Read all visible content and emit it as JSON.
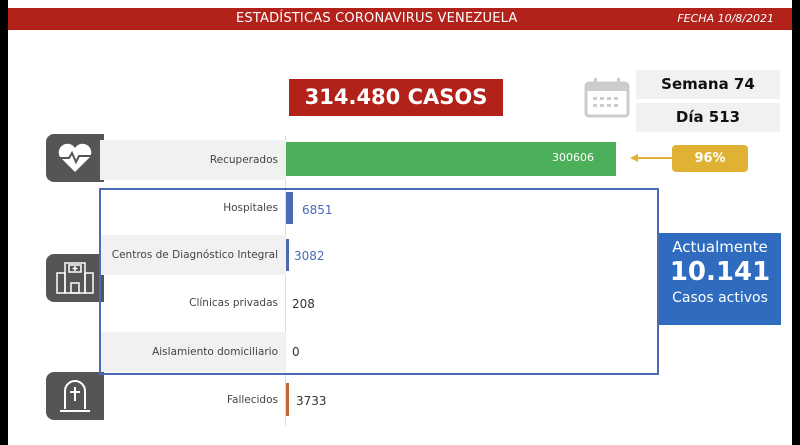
{
  "header": {
    "title": "ESTADÍSTICAS CORONAVIRUS VENEZUELA",
    "date": "FECHA 10/8/2021"
  },
  "total_cases": "314.480 CASOS",
  "week": "Semana 74",
  "day": "Día 513",
  "rows": [
    {
      "label": "Recuperados",
      "value": "300606",
      "color": "#4caf5a"
    },
    {
      "label": "Hospitales",
      "value": "6851",
      "color": "#4a6ab8"
    },
    {
      "label": "Centros de Diagnóstico Integral",
      "value": "3082",
      "color": "#4a6ab8"
    },
    {
      "label": "Clínicas privadas",
      "value": "208"
    },
    {
      "label": "Aislamiento domiciliario",
      "value": "0"
    },
    {
      "label": "Fallecidos",
      "value": "3733",
      "color": "#c0692c"
    }
  ],
  "recovered_pct": "96%",
  "active": {
    "title": "Actualmente",
    "value": "10.141",
    "subtitle": "Casos activos"
  }
}
